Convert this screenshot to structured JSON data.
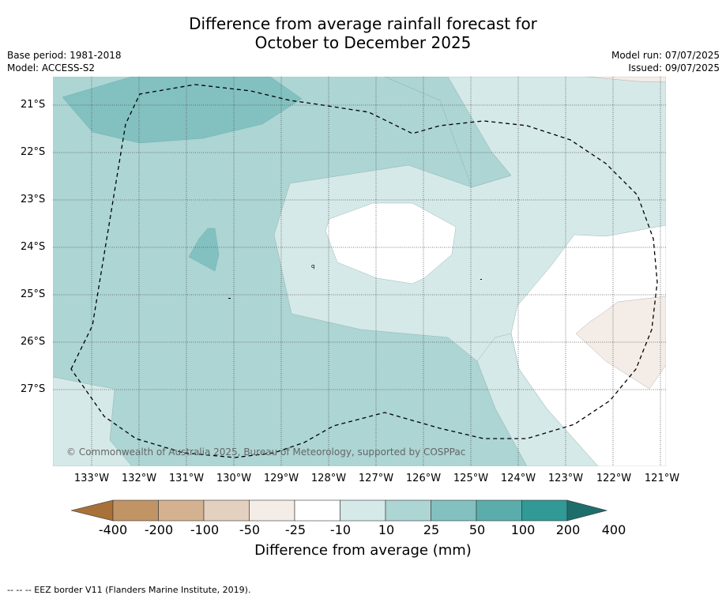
{
  "title_line1": "Difference from average rainfall forecast for",
  "title_line2": "October to December 2025",
  "base_period": "Base period: 1981-2018",
  "model": "Model: ACCESS-S2",
  "model_run": "Model run: 07/07/2025",
  "issued": "Issued: 09/07/2025",
  "copyright": "© Commonwealth of Australia 2025, Bureau of Meteorology, supported by COSPPac",
  "latitudes": [
    "21°S",
    "22°S",
    "23°S",
    "24°S",
    "25°S",
    "26°S",
    "27°S"
  ],
  "longitudes": [
    "133°W",
    "132°W",
    "131°W",
    "130°W",
    "129°W",
    "128°W",
    "127°W",
    "126°W",
    "125°W",
    "124°W",
    "123°W",
    "122°W",
    "121°W"
  ],
  "colorbar": {
    "ticks": [
      "-400",
      "-200",
      "-100",
      "-50",
      "-25",
      "-10",
      "10",
      "25",
      "50",
      "100",
      "200",
      "400"
    ],
    "colors": [
      "#a9713a",
      "#c19466",
      "#d4b190",
      "#e4d0be",
      "#f4ede7",
      "#ffffff",
      "#d5e9e8",
      "#acd5d4",
      "#82c1c0",
      "#5aadab",
      "#319996",
      "#1d6e6b"
    ],
    "label": "Difference from average (mm)"
  },
  "footnote": "-- -- -- EEZ border V11 (Flanders Marine Institute, 2019).",
  "map_colors": {
    "level_10_25": "#d5e9e8",
    "level_25_50": "#acd5d4",
    "level_50_100": "#82c1c0",
    "level_neg10_neg25": "#f4ede7",
    "neutral": "#ffffff"
  }
}
